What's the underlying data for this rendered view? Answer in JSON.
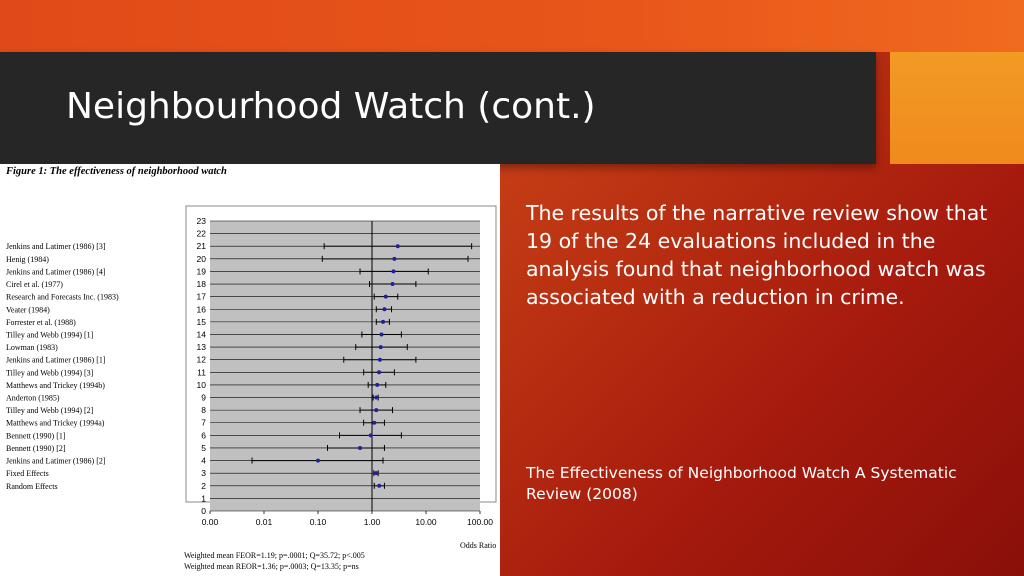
{
  "slide": {
    "title": "Neighbourhood Watch (cont.)",
    "body": "The results of the narrative review show that 19 of the 24 evaluations included in the analysis found that neighborhood watch was associated with a reduction in crime.",
    "citation": "The Effectiveness of Neighborhood Watch A Systematic Review (2008)"
  },
  "colors": {
    "title_bar": "#262626",
    "accent": "#f0901f",
    "background": "#c23a14",
    "point": "#2020a0",
    "plot_bg": "#c0c0c0"
  },
  "chart_data": {
    "type": "scatter",
    "title": "Figure 1: The effectiveness of neighborhood watch",
    "xlabel": "Odds Ratio",
    "xscale": "log",
    "xlim": [
      0.001,
      100
    ],
    "x_ticks": [
      "0.00",
      "0.01",
      "0.10",
      "1.00",
      "10.00",
      "100.00"
    ],
    "y_ticks": [
      "23",
      "22",
      "21",
      "20",
      "19",
      "18",
      "17",
      "16",
      "15",
      "14",
      "13",
      "12",
      "11",
      "10",
      "9",
      "8",
      "7",
      "6",
      "5",
      "4",
      "3",
      "2",
      "1",
      "0"
    ],
    "ylim": [
      0,
      23
    ],
    "reference_line": 1,
    "grid": true,
    "studies": [
      {
        "name": "Jenkins and Latimer (1986) [3]",
        "y": 21,
        "or": 3.0,
        "lo": 0.13,
        "hi": 70
      },
      {
        "name": "Henig (1984)",
        "y": 20,
        "or": 2.6,
        "lo": 0.12,
        "hi": 60
      },
      {
        "name": "Jenkins and Latimer (1986) [4]",
        "y": 19,
        "or": 2.5,
        "lo": 0.6,
        "hi": 11
      },
      {
        "name": "Cirel et al. (1977)",
        "y": 18,
        "or": 2.4,
        "lo": 0.9,
        "hi": 6.5
      },
      {
        "name": "Research and Forecasts Inc. (1983)",
        "y": 17,
        "or": 1.8,
        "lo": 1.1,
        "hi": 3.0
      },
      {
        "name": "Veater (1984)",
        "y": 16,
        "or": 1.7,
        "lo": 1.2,
        "hi": 2.3
      },
      {
        "name": "Forrester et al. (1988)",
        "y": 15,
        "or": 1.6,
        "lo": 1.2,
        "hi": 2.1
      },
      {
        "name": "Tilley and Webb (1994) [1]",
        "y": 14,
        "or": 1.5,
        "lo": 0.65,
        "hi": 3.5
      },
      {
        "name": "Lowman (1983)",
        "y": 13,
        "or": 1.45,
        "lo": 0.5,
        "hi": 4.5
      },
      {
        "name": "Jenkins and Latimer (1986) [1]",
        "y": 12,
        "or": 1.4,
        "lo": 0.3,
        "hi": 6.5
      },
      {
        "name": "Tilley and Webb (1994) [3]",
        "y": 11,
        "or": 1.35,
        "lo": 0.7,
        "hi": 2.6
      },
      {
        "name": "Matthews and Trickey (1994b)",
        "y": 10,
        "or": 1.25,
        "lo": 0.85,
        "hi": 1.8
      },
      {
        "name": "Anderton (1985)",
        "y": 9,
        "or": 1.2,
        "lo": 1.05,
        "hi": 1.3
      },
      {
        "name": "Tilley and Webb (1994) [2]",
        "y": 8,
        "or": 1.2,
        "lo": 0.6,
        "hi": 2.4
      },
      {
        "name": "Matthews and Trickey (1994a)",
        "y": 7,
        "or": 1.1,
        "lo": 0.7,
        "hi": 1.7
      },
      {
        "name": "Bennett (1990) [1]",
        "y": 6,
        "or": 0.95,
        "lo": 0.25,
        "hi": 3.5
      },
      {
        "name": "Bennett (1990) [2]",
        "y": 5,
        "or": 0.6,
        "lo": 0.15,
        "hi": 1.7
      },
      {
        "name": "Jenkins and Latimer (1986) [2]",
        "y": 4,
        "or": 0.1,
        "lo": 0.006,
        "hi": 1.6
      },
      {
        "name": "Fixed Effects",
        "y": 3,
        "or": 1.19,
        "lo": 1.08,
        "hi": 1.3
      },
      {
        "name": "Random Effects",
        "y": 2,
        "or": 1.36,
        "lo": 1.1,
        "hi": 1.7
      }
    ],
    "footnotes": [
      "Weighted mean FEOR=1.19; p=.0001; Q=35.72; p<.005",
      "Weighted mean REOR=1.36; p=.0003; Q=13.35; p=ns"
    ]
  }
}
